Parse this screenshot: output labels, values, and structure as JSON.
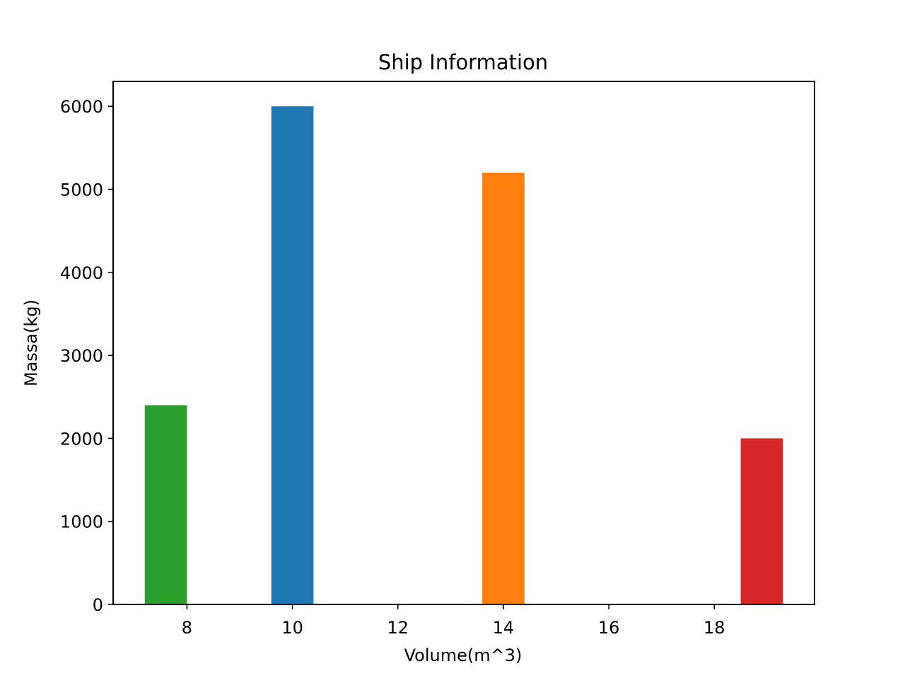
{
  "chart_data": {
    "type": "bar",
    "title": "Ship Information",
    "xlabel": "Volume(m^3)",
    "ylabel": "Massa(kg)",
    "x": [
      7.6,
      10,
      14,
      18.9
    ],
    "values": [
      2400,
      6000,
      5200,
      2000
    ],
    "bar_width": 0.8,
    "colors": [
      "#2ca02c",
      "#1f77b4",
      "#ff7f0e",
      "#d62728"
    ],
    "xlim": [
      6.6,
      19.9
    ],
    "ylim": [
      0,
      6300
    ],
    "xticks": [
      8,
      10,
      12,
      14,
      16,
      18
    ],
    "yticks": [
      0,
      1000,
      2000,
      3000,
      4000,
      5000,
      6000
    ],
    "grid": false,
    "legend": "none"
  }
}
